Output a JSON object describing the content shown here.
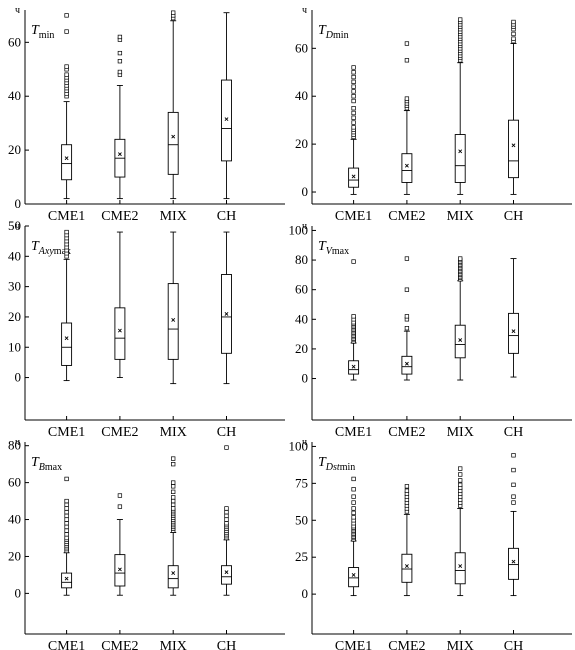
{
  "chart_data": [
    {
      "type": "box",
      "title_main": "T",
      "title_sub": "min",
      "title_sub_italic": "",
      "unit": "ч",
      "categories": [
        "CME1",
        "CME2",
        "MIX",
        "CH"
      ],
      "ylim": [
        0,
        72
      ],
      "yticks": [
        0,
        20,
        40,
        60
      ],
      "boxes": [
        {
          "min": 2,
          "q1": 9,
          "median": 15,
          "q3": 22,
          "max": 38,
          "mean": 17,
          "outliers": [
            40,
            41,
            42,
            43,
            44,
            45,
            46,
            47,
            48,
            50,
            51,
            64,
            70
          ]
        },
        {
          "min": 2,
          "q1": 10,
          "median": 17,
          "q3": 24,
          "max": 44,
          "mean": 18.5,
          "outliers": [
            48,
            49,
            53,
            56,
            61,
            62
          ]
        },
        {
          "min": 2,
          "q1": 11,
          "median": 22,
          "q3": 34,
          "max": 68,
          "mean": 25,
          "outliers": [
            69,
            70,
            71
          ]
        },
        {
          "min": 2,
          "q1": 16,
          "median": 28,
          "q3": 46,
          "max": 71,
          "mean": 31.5,
          "outliers": []
        }
      ]
    },
    {
      "type": "box",
      "title_main": "T",
      "title_sub": "min",
      "title_sub_italic": "D",
      "unit": "ч",
      "categories": [
        "CME1",
        "CME2",
        "MIX",
        "CH"
      ],
      "ylim": [
        -5,
        76
      ],
      "yticks": [
        0,
        20,
        40,
        60
      ],
      "boxes": [
        {
          "min": -1,
          "q1": 2,
          "median": 5,
          "q3": 10,
          "max": 22,
          "mean": 6.5,
          "outliers": [
            23,
            24,
            25,
            26,
            27,
            29,
            31,
            33,
            35,
            38,
            40,
            42,
            44,
            46,
            48,
            50,
            52
          ]
        },
        {
          "min": -1,
          "q1": 4,
          "median": 9,
          "q3": 16,
          "max": 34,
          "mean": 11,
          "outliers": [
            35,
            36,
            37,
            38,
            39,
            55,
            62
          ]
        },
        {
          "min": -1,
          "q1": 4,
          "median": 11,
          "q3": 24,
          "max": 54,
          "mean": 17,
          "outliers": [
            55,
            56,
            57,
            58,
            59,
            60,
            61,
            62,
            63,
            64,
            65,
            66,
            67,
            68,
            69,
            70,
            71,
            72
          ]
        },
        {
          "min": -1,
          "q1": 6,
          "median": 13,
          "q3": 30,
          "max": 62,
          "mean": 19.5,
          "outliers": [
            63,
            64,
            66,
            68,
            69,
            70,
            71
          ]
        }
      ]
    },
    {
      "type": "box",
      "title_main": "T",
      "title_sub": "max",
      "title_sub_italic": "Axy",
      "unit": "ч",
      "categories": [
        "CME1",
        "CME2",
        "MIX",
        "CH"
      ],
      "ylim": [
        -14,
        50
      ],
      "yticks": [
        0,
        10,
        20,
        30,
        40,
        50
      ],
      "boxes": [
        {
          "min": -1,
          "q1": 4,
          "median": 10,
          "q3": 18,
          "max": 39,
          "mean": 13,
          "outliers": [
            40,
            41,
            42,
            43,
            44,
            45,
            46,
            47,
            48
          ]
        },
        {
          "min": 0,
          "q1": 6,
          "median": 13,
          "q3": 23,
          "max": 48,
          "mean": 15.5,
          "outliers": []
        },
        {
          "min": -2,
          "q1": 6,
          "median": 16,
          "q3": 31,
          "max": 48,
          "mean": 19,
          "outliers": []
        },
        {
          "min": -2,
          "q1": 8,
          "median": 20,
          "q3": 34,
          "max": 48,
          "mean": 21,
          "outliers": []
        }
      ]
    },
    {
      "type": "box",
      "title_main": "T",
      "title_sub": "max",
      "title_sub_italic": "V",
      "unit": "ч",
      "categories": [
        "CME1",
        "CME2",
        "MIX",
        "CH"
      ],
      "ylim": [
        -28,
        103
      ],
      "yticks": [
        0,
        20,
        40,
        60,
        80,
        100
      ],
      "boxes": [
        {
          "min": -1,
          "q1": 3,
          "median": 6,
          "q3": 12,
          "max": 24,
          "mean": 8,
          "outliers": [
            25,
            26,
            27,
            28,
            29,
            30,
            31,
            32,
            33,
            34,
            35,
            36,
            37,
            38,
            40,
            42,
            79
          ]
        },
        {
          "min": -1,
          "q1": 3,
          "median": 8,
          "q3": 15,
          "max": 32,
          "mean": 10,
          "outliers": [
            34,
            40,
            42,
            60,
            81
          ]
        },
        {
          "min": -1,
          "q1": 14,
          "median": 23,
          "q3": 36,
          "max": 66,
          "mean": 26,
          "outliers": [
            67,
            68,
            69,
            70,
            71,
            72,
            73,
            74,
            75,
            76,
            77,
            78,
            79,
            80,
            81
          ]
        },
        {
          "min": 1,
          "q1": 17,
          "median": 29,
          "q3": 44,
          "max": 81,
          "mean": 32,
          "outliers": []
        }
      ]
    },
    {
      "type": "box",
      "title_main": "T",
      "title_sub": "max",
      "title_sub_italic": "B",
      "unit": "ч",
      "categories": [
        "CME1",
        "CME2",
        "MIX",
        "CH"
      ],
      "ylim": [
        -22,
        82
      ],
      "yticks": [
        0,
        20,
        40,
        60,
        80
      ],
      "boxes": [
        {
          "min": -1,
          "q1": 3,
          "median": 6,
          "q3": 11,
          "max": 22,
          "mean": 8,
          "outliers": [
            23,
            24,
            25,
            26,
            27,
            28,
            29,
            30,
            32,
            34,
            36,
            38,
            40,
            42,
            44,
            46,
            48,
            50,
            62
          ]
        },
        {
          "min": -1,
          "q1": 4,
          "median": 11,
          "q3": 21,
          "max": 40,
          "mean": 13,
          "outliers": [
            47,
            53
          ]
        },
        {
          "min": -1,
          "q1": 3,
          "median": 8,
          "q3": 15,
          "max": 33,
          "mean": 11,
          "outliers": [
            34,
            35,
            36,
            37,
            38,
            39,
            40,
            41,
            42,
            43,
            44,
            45,
            46,
            48,
            50,
            52,
            55,
            58,
            60,
            70,
            73
          ]
        },
        {
          "min": -1,
          "q1": 5,
          "median": 9,
          "q3": 15,
          "max": 29,
          "mean": 11.5,
          "outliers": [
            30,
            31,
            32,
            33,
            34,
            35,
            36,
            37,
            38,
            40,
            42,
            44,
            46,
            79
          ]
        }
      ]
    },
    {
      "type": "box",
      "title_main": "T",
      "title_sub": "min",
      "title_sub_italic": "Dst",
      "unit": "ч",
      "categories": [
        "CME1",
        "CME2",
        "MIX",
        "CH"
      ],
      "ylim": [
        -27,
        103
      ],
      "yticks": [
        0,
        25,
        50,
        75,
        100
      ],
      "boxes": [
        {
          "min": -1,
          "q1": 5,
          "median": 11,
          "q3": 18,
          "max": 36,
          "mean": 13,
          "outliers": [
            37,
            38,
            39,
            40,
            41,
            42,
            43,
            44,
            45,
            46,
            48,
            50,
            52,
            55,
            58,
            62,
            66,
            71,
            78
          ]
        },
        {
          "min": -1,
          "q1": 8,
          "median": 17,
          "q3": 27,
          "max": 54,
          "mean": 19,
          "outliers": [
            56,
            58,
            60,
            62,
            64,
            66,
            68,
            70,
            73
          ]
        },
        {
          "min": -1,
          "q1": 7,
          "median": 16,
          "q3": 28,
          "max": 58,
          "mean": 19,
          "outliers": [
            60,
            62,
            64,
            66,
            68,
            70,
            72,
            74,
            77,
            81,
            85
          ]
        },
        {
          "min": -1,
          "q1": 10,
          "median": 20,
          "q3": 31,
          "max": 56,
          "mean": 22,
          "outliers": [
            62,
            66,
            74,
            84,
            94
          ]
        }
      ]
    }
  ]
}
